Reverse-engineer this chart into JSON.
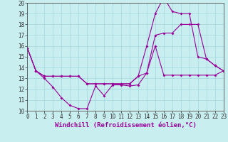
{
  "bg_color": "#c8eef0",
  "line_color": "#990099",
  "grid_color": "#a0d8df",
  "xlabel": "Windchill (Refroidissement éolien,°C)",
  "ylim": [
    10,
    20
  ],
  "xlim": [
    0,
    23
  ],
  "yticks": [
    10,
    11,
    12,
    13,
    14,
    15,
    16,
    17,
    18,
    19,
    20
  ],
  "xticks": [
    0,
    1,
    2,
    3,
    4,
    5,
    6,
    7,
    8,
    9,
    10,
    11,
    12,
    13,
    14,
    15,
    16,
    17,
    18,
    19,
    20,
    21,
    22,
    23
  ],
  "line1_x": [
    0,
    1,
    2,
    3,
    4,
    5,
    6,
    7,
    8,
    9,
    10,
    11,
    12,
    13,
    14,
    15,
    16,
    17,
    18,
    19,
    20,
    21,
    22,
    23
  ],
  "line1_y": [
    15.8,
    13.7,
    13.0,
    12.2,
    11.2,
    10.5,
    10.2,
    10.2,
    12.3,
    11.4,
    12.4,
    12.4,
    12.3,
    12.4,
    13.5,
    16.0,
    13.3,
    13.3,
    13.3,
    13.3,
    13.3,
    13.3,
    13.3,
    13.7
  ],
  "line2_x": [
    0,
    1,
    2,
    3,
    4,
    5,
    6,
    7,
    8,
    9,
    10,
    11,
    12,
    13,
    14,
    15,
    16,
    17,
    18,
    19,
    20,
    21,
    22,
    23
  ],
  "line2_y": [
    15.8,
    13.7,
    13.2,
    13.2,
    13.2,
    13.2,
    13.2,
    12.5,
    12.5,
    12.5,
    12.5,
    12.5,
    12.5,
    13.2,
    13.5,
    17.0,
    17.2,
    17.2,
    18.0,
    18.0,
    18.0,
    14.8,
    14.2,
    13.7
  ],
  "line3_x": [
    0,
    1,
    2,
    3,
    4,
    5,
    6,
    7,
    8,
    9,
    10,
    11,
    12,
    13,
    14,
    15,
    16,
    17,
    18,
    19,
    20,
    21,
    22,
    23
  ],
  "line3_y": [
    15.8,
    13.7,
    13.2,
    13.2,
    13.2,
    13.2,
    13.2,
    12.5,
    12.5,
    12.5,
    12.5,
    12.5,
    12.5,
    13.2,
    16.0,
    19.0,
    20.5,
    19.2,
    19.0,
    19.0,
    15.0,
    14.8,
    14.2,
    13.7
  ],
  "marker": "D",
  "markersize": 2.0,
  "linewidth": 0.8,
  "xlabel_fontsize": 6.5,
  "tick_fontsize": 5.5,
  "font_family": "monospace"
}
